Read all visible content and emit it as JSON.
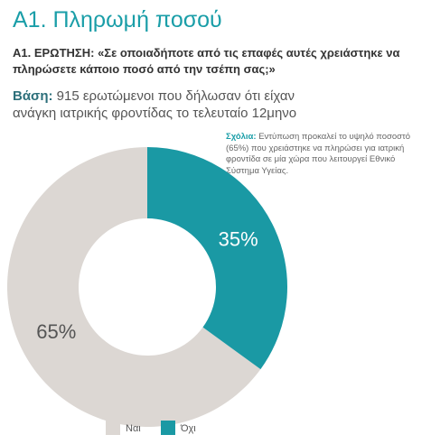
{
  "chart_data": {
    "type": "donut",
    "title": "A1. Πληρωμή ποσού",
    "question": "A1. ΕΡΩΤΗΣΗ: «Σε οποιαδήποτε από τις επαφές αυτές χρειάστηκε να πληρώσετε κάποιο ποσό από την τσέπη σας;»",
    "base_label": "Βάση:",
    "base_text": "915 ερωτώμενοι που δήλωσαν ότι είχαν ανάγκη ιατρικής φροντίδας το τελευταίο 12μηνο",
    "note_label": "Σχόλια:",
    "note_text": "Εντύπωση προκαλεί το υψηλό ποσοστό (65%) που χρειάστηκε να πληρώσει  για ιατρική φροντίδα σε μία χώρα που λειτουργεί Εθνικό Σύστημα Υγείας.",
    "categories": [
      "Ναι",
      "Όχι"
    ],
    "values": [
      65,
      35
    ],
    "value_labels": [
      "65%",
      "35%"
    ],
    "colors": [
      "#dcd7d3",
      "#1a99a4"
    ]
  }
}
